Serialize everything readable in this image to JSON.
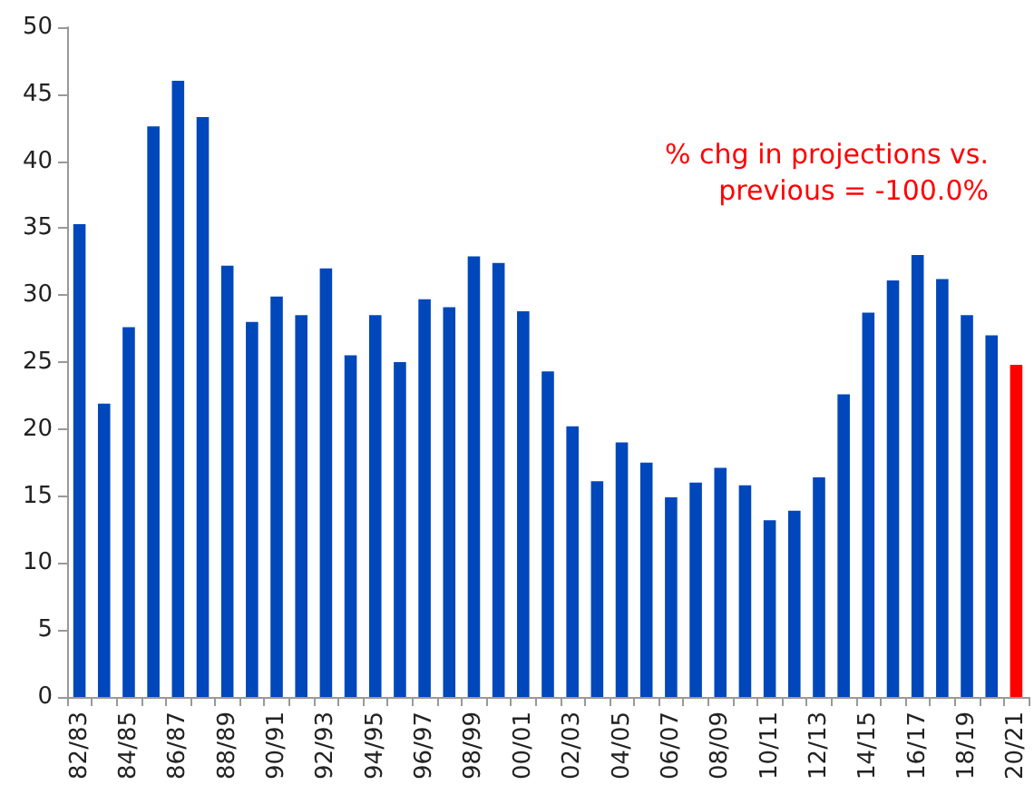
{
  "chart_data": {
    "type": "bar",
    "categories": [
      "82/83",
      null,
      "84/85",
      null,
      "86/87",
      null,
      "88/89",
      null,
      "90/91",
      null,
      "92/93",
      null,
      "94/95",
      null,
      "96/97",
      null,
      "98/99",
      null,
      "00/01",
      null,
      "02/03",
      null,
      "04/05",
      null,
      "06/07",
      null,
      "08/09",
      null,
      "10/11",
      null,
      "12/13",
      null,
      "14/15",
      null,
      "16/17",
      null,
      "18/19",
      null,
      "20/21"
    ],
    "values": [
      35.3,
      21.9,
      27.6,
      42.6,
      46.0,
      43.3,
      32.2,
      28.0,
      29.9,
      28.5,
      32.0,
      25.5,
      28.5,
      25.0,
      29.7,
      29.1,
      32.9,
      32.4,
      28.8,
      24.3,
      20.2,
      16.1,
      19.0,
      17.5,
      14.9,
      16.0,
      17.1,
      15.8,
      13.2,
      13.9,
      16.4,
      22.6,
      28.7,
      31.1,
      33.0,
      31.2,
      28.5,
      27.0,
      24.8
    ],
    "colors": [
      "#0047bb",
      "#0047bb",
      "#0047bb",
      "#0047bb",
      "#0047bb",
      "#0047bb",
      "#0047bb",
      "#0047bb",
      "#0047bb",
      "#0047bb",
      "#0047bb",
      "#0047bb",
      "#0047bb",
      "#0047bb",
      "#0047bb",
      "#0047bb",
      "#0047bb",
      "#0047bb",
      "#0047bb",
      "#0047bb",
      "#0047bb",
      "#0047bb",
      "#0047bb",
      "#0047bb",
      "#0047bb",
      "#0047bb",
      "#0047bb",
      "#0047bb",
      "#0047bb",
      "#0047bb",
      "#0047bb",
      "#0047bb",
      "#0047bb",
      "#0047bb",
      "#0047bb",
      "#0047bb",
      "#0047bb",
      "#0047bb",
      "#ff0000"
    ],
    "ylim": [
      0,
      50
    ],
    "yticks": [
      0,
      5,
      10,
      15,
      20,
      25,
      30,
      35,
      40,
      45,
      50
    ],
    "annotations": [
      "% chg in projections vs.\nprevious = -100.0%"
    ],
    "grid": false
  }
}
